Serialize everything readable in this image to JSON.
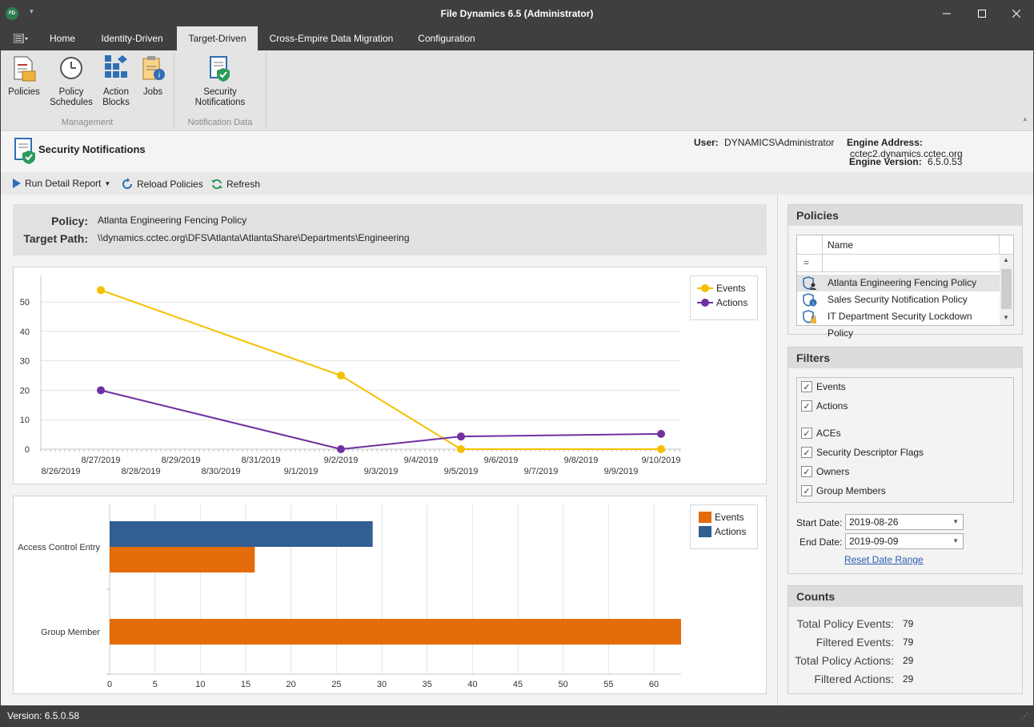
{
  "app": {
    "title": "File Dynamics 6.5 (Administrator)",
    "icon_text": "FD"
  },
  "tabs": [
    {
      "label": "Home"
    },
    {
      "label": "Identity-Driven"
    },
    {
      "label": "Target-Driven"
    },
    {
      "label": "Cross-Empire Data Migration"
    },
    {
      "label": "Configuration"
    }
  ],
  "active_tab": "Target-Driven",
  "ribbon": {
    "buttons": [
      {
        "label": "Policies",
        "icon": "policies-icon"
      },
      {
        "label": "Policy\nSchedules",
        "icon": "clock-icon"
      },
      {
        "label": "Action\nBlocks",
        "icon": "blocks-icon"
      },
      {
        "label": "Jobs",
        "icon": "jobs-icon"
      },
      {
        "label": "Security\nNotifications",
        "icon": "security-notification-icon"
      }
    ],
    "groups": [
      "Management",
      "Notification Data"
    ]
  },
  "header": {
    "title": "Security Notifications",
    "user_label": "User:",
    "user_value": "DYNAMICS\\Administrator",
    "engine_address_label": "Engine Address:",
    "engine_address_value": "cctec2.dynamics.cctec.org",
    "engine_version_label": "Engine Version:",
    "engine_version_value": "6.5.0.53"
  },
  "toolbar": {
    "run_report": "Run Detail Report",
    "reload": "Reload Policies",
    "refresh": "Refresh"
  },
  "policy": {
    "policy_label": "Policy:",
    "policy_value": "Atlanta Engineering Fencing Policy",
    "target_label": "Target Path:",
    "target_value": "\\\\dynamics.cctec.org\\DFS\\Atlanta\\AtlantaShare\\Departments\\Engineering"
  },
  "chart_data": [
    {
      "type": "line",
      "x": [
        "8/27/2019",
        "9/2/2019",
        "9/5/2019",
        "9/10/2019"
      ],
      "series": [
        {
          "name": "Events",
          "color": "#f5c000",
          "values": [
            54,
            25,
            0,
            0
          ]
        },
        {
          "name": "Actions",
          "color": "#7030a0",
          "values": [
            20,
            0,
            4.3,
            5.2
          ]
        }
      ],
      "x_ticks": [
        "8/26/2019",
        "8/27/2019",
        "8/28/2019",
        "8/29/2019",
        "8/30/2019",
        "8/31/2019",
        "9/1/2019",
        "9/2/2019",
        "9/3/2019",
        "9/4/2019",
        "9/5/2019",
        "9/6/2019",
        "9/7/2019",
        "9/8/2019",
        "9/9/2019",
        "9/10/2019"
      ],
      "y_ticks": [
        0,
        10,
        20,
        30,
        40,
        50
      ],
      "ylim": [
        0,
        59
      ],
      "legend": "top-right",
      "grid": true
    },
    {
      "type": "bar",
      "orientation": "horizontal",
      "categories": [
        "Access Control Entry",
        "Group Member"
      ],
      "series": [
        {
          "name": "Events",
          "color": "#e46c0a",
          "values": [
            16,
            63
          ]
        },
        {
          "name": "Actions",
          "color": "#315f91",
          "values": [
            29,
            0
          ]
        }
      ],
      "x_ticks": [
        0,
        5,
        10,
        15,
        20,
        25,
        30,
        35,
        40,
        45,
        50,
        55,
        60
      ],
      "xlim": [
        0,
        63
      ],
      "legend": "top-right",
      "grid": true
    }
  ],
  "policies_panel": {
    "title": "Policies",
    "column": "Name",
    "filter_symbol": "=",
    "items": [
      {
        "name": "Atlanta Engineering Fencing Policy",
        "icon": "shield-user-icon",
        "selected": true
      },
      {
        "name": "Sales Security Notification Policy",
        "icon": "shield-info-icon"
      },
      {
        "name": "IT Department Security Lockdown Policy",
        "icon": "shield-lock-icon"
      }
    ]
  },
  "filters_panel": {
    "title": "Filters",
    "items": [
      {
        "label": "Events",
        "checked": true
      },
      {
        "label": "Actions",
        "checked": true
      },
      {
        "label": "ACEs",
        "checked": true
      },
      {
        "label": "Security Descriptor Flags",
        "checked": true
      },
      {
        "label": "Owners",
        "checked": true
      },
      {
        "label": "Group Members",
        "checked": true
      }
    ],
    "start_label": "Start Date:",
    "start_value": "2019-08-26",
    "end_label": "End Date:",
    "end_value": "2019-09-09",
    "reset_link": "Reset Date Range"
  },
  "counts_panel": {
    "title": "Counts",
    "rows": [
      {
        "label": "Total Policy Events:",
        "value": "79"
      },
      {
        "label": "Filtered Events:",
        "value": "79"
      },
      {
        "label": "Total Policy Actions:",
        "value": "29"
      },
      {
        "label": "Filtered Actions:",
        "value": "29"
      }
    ]
  },
  "status": {
    "version": "Version: 6.5.0.58"
  }
}
